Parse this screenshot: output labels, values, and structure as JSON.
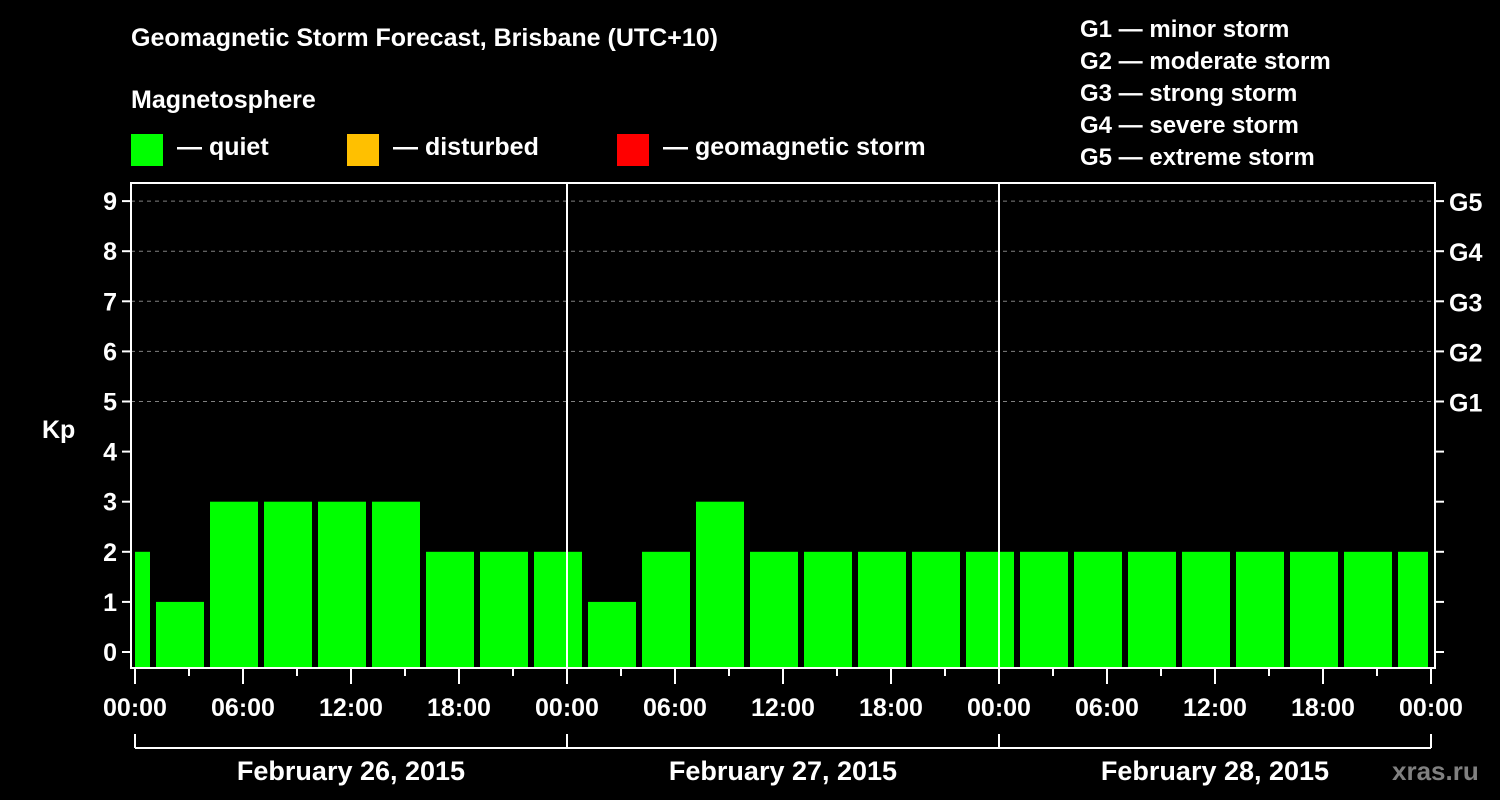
{
  "header": {
    "title": "Geomagnetic Storm Forecast, Brisbane (UTC+10)",
    "subtitle": "Magnetosphere"
  },
  "legend": [
    {
      "label": "— quiet",
      "color": "#00ff00"
    },
    {
      "label": "— disturbed",
      "color": "#ffc000"
    },
    {
      "label": "— geomagnetic storm",
      "color": "#ff0000"
    }
  ],
  "storm_scale": [
    "G1 — minor storm",
    "G2 — moderate storm",
    "G3 — strong storm",
    "G4 — severe storm",
    "G5 — extreme storm"
  ],
  "watermark": "xras.ru",
  "chart_data": {
    "type": "bar",
    "title": "Geomagnetic Storm Forecast, Brisbane (UTC+10)",
    "ylabel": "Kp",
    "xlabel": "",
    "ylim": [
      0,
      9
    ],
    "yticks": [
      0,
      1,
      2,
      3,
      4,
      5,
      6,
      7,
      8,
      9
    ],
    "right_axis": [
      {
        "kp": 5,
        "label": "G1"
      },
      {
        "kp": 6,
        "label": "G2"
      },
      {
        "kp": 7,
        "label": "G3"
      },
      {
        "kp": 8,
        "label": "G4"
      },
      {
        "kp": 9,
        "label": "G5"
      }
    ],
    "grid": "dashed horizontal lines at Kp 5–9",
    "xtick_labels": [
      "00:00",
      "06:00",
      "12:00",
      "18:00",
      "00:00",
      "06:00",
      "12:00",
      "18:00",
      "00:00",
      "06:00",
      "12:00",
      "18:00",
      "00:00"
    ],
    "days": [
      "February 26, 2015",
      "February 27, 2015",
      "February 28, 2015"
    ],
    "bar_color": "#00ff00",
    "bar_note": "3-hour Kp bars; first and last bars are clipped at the plot edges, so interval boundaries are offset from the 00:00 tick",
    "values": [
      2,
      1,
      3,
      3,
      3,
      3,
      2,
      2,
      2,
      1,
      2,
      3,
      2,
      2,
      2,
      2,
      2,
      2,
      2,
      2,
      2,
      2,
      2,
      2,
      2
    ]
  }
}
